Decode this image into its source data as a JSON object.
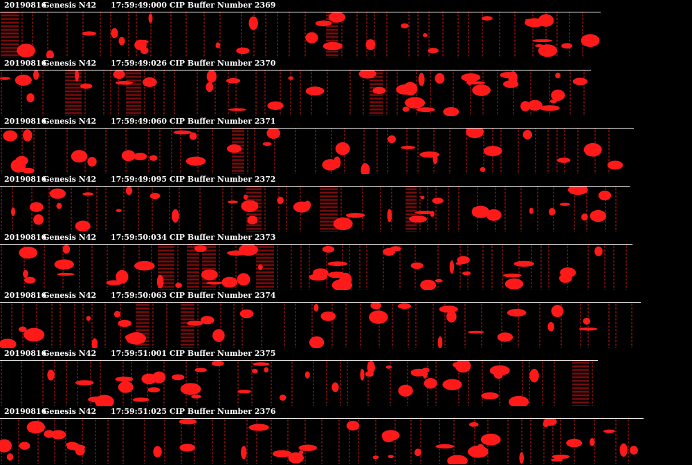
{
  "colors": {
    "background": "#000000",
    "particle": "#ff1a1a",
    "text": "#ffffff"
  },
  "strips": [
    {
      "date": "20190816",
      "probe": "Genesis N42",
      "info": "17:59:49:000 CIP Buffer Number 2369"
    },
    {
      "date": "20190816",
      "probe": "Genesis N42",
      "info": "17:59:49:026 CIP Buffer Number 2370"
    },
    {
      "date": "20190816",
      "probe": "Genesis N42",
      "info": "17:59:49:060 CIP Buffer Number 2371"
    },
    {
      "date": "20190816",
      "probe": "Genesis N42",
      "info": "17:59:49:095 CIP Buffer Number 2372"
    },
    {
      "date": "20190816",
      "probe": "Genesis N42",
      "info": "17:59:50:034 CIP Buffer Number 2373"
    },
    {
      "date": "20190816",
      "probe": "Genesis N42",
      "info": "17:59:50:063 CIP Buffer Number 2374"
    },
    {
      "date": "20190816",
      "probe": "Genesis N42",
      "info": "17:59:51:001 CIP Buffer Number 2375"
    },
    {
      "date": "20190816",
      "probe": "Genesis N42",
      "info": "17:59:51:025 CIP Buffer Number 2376"
    }
  ]
}
